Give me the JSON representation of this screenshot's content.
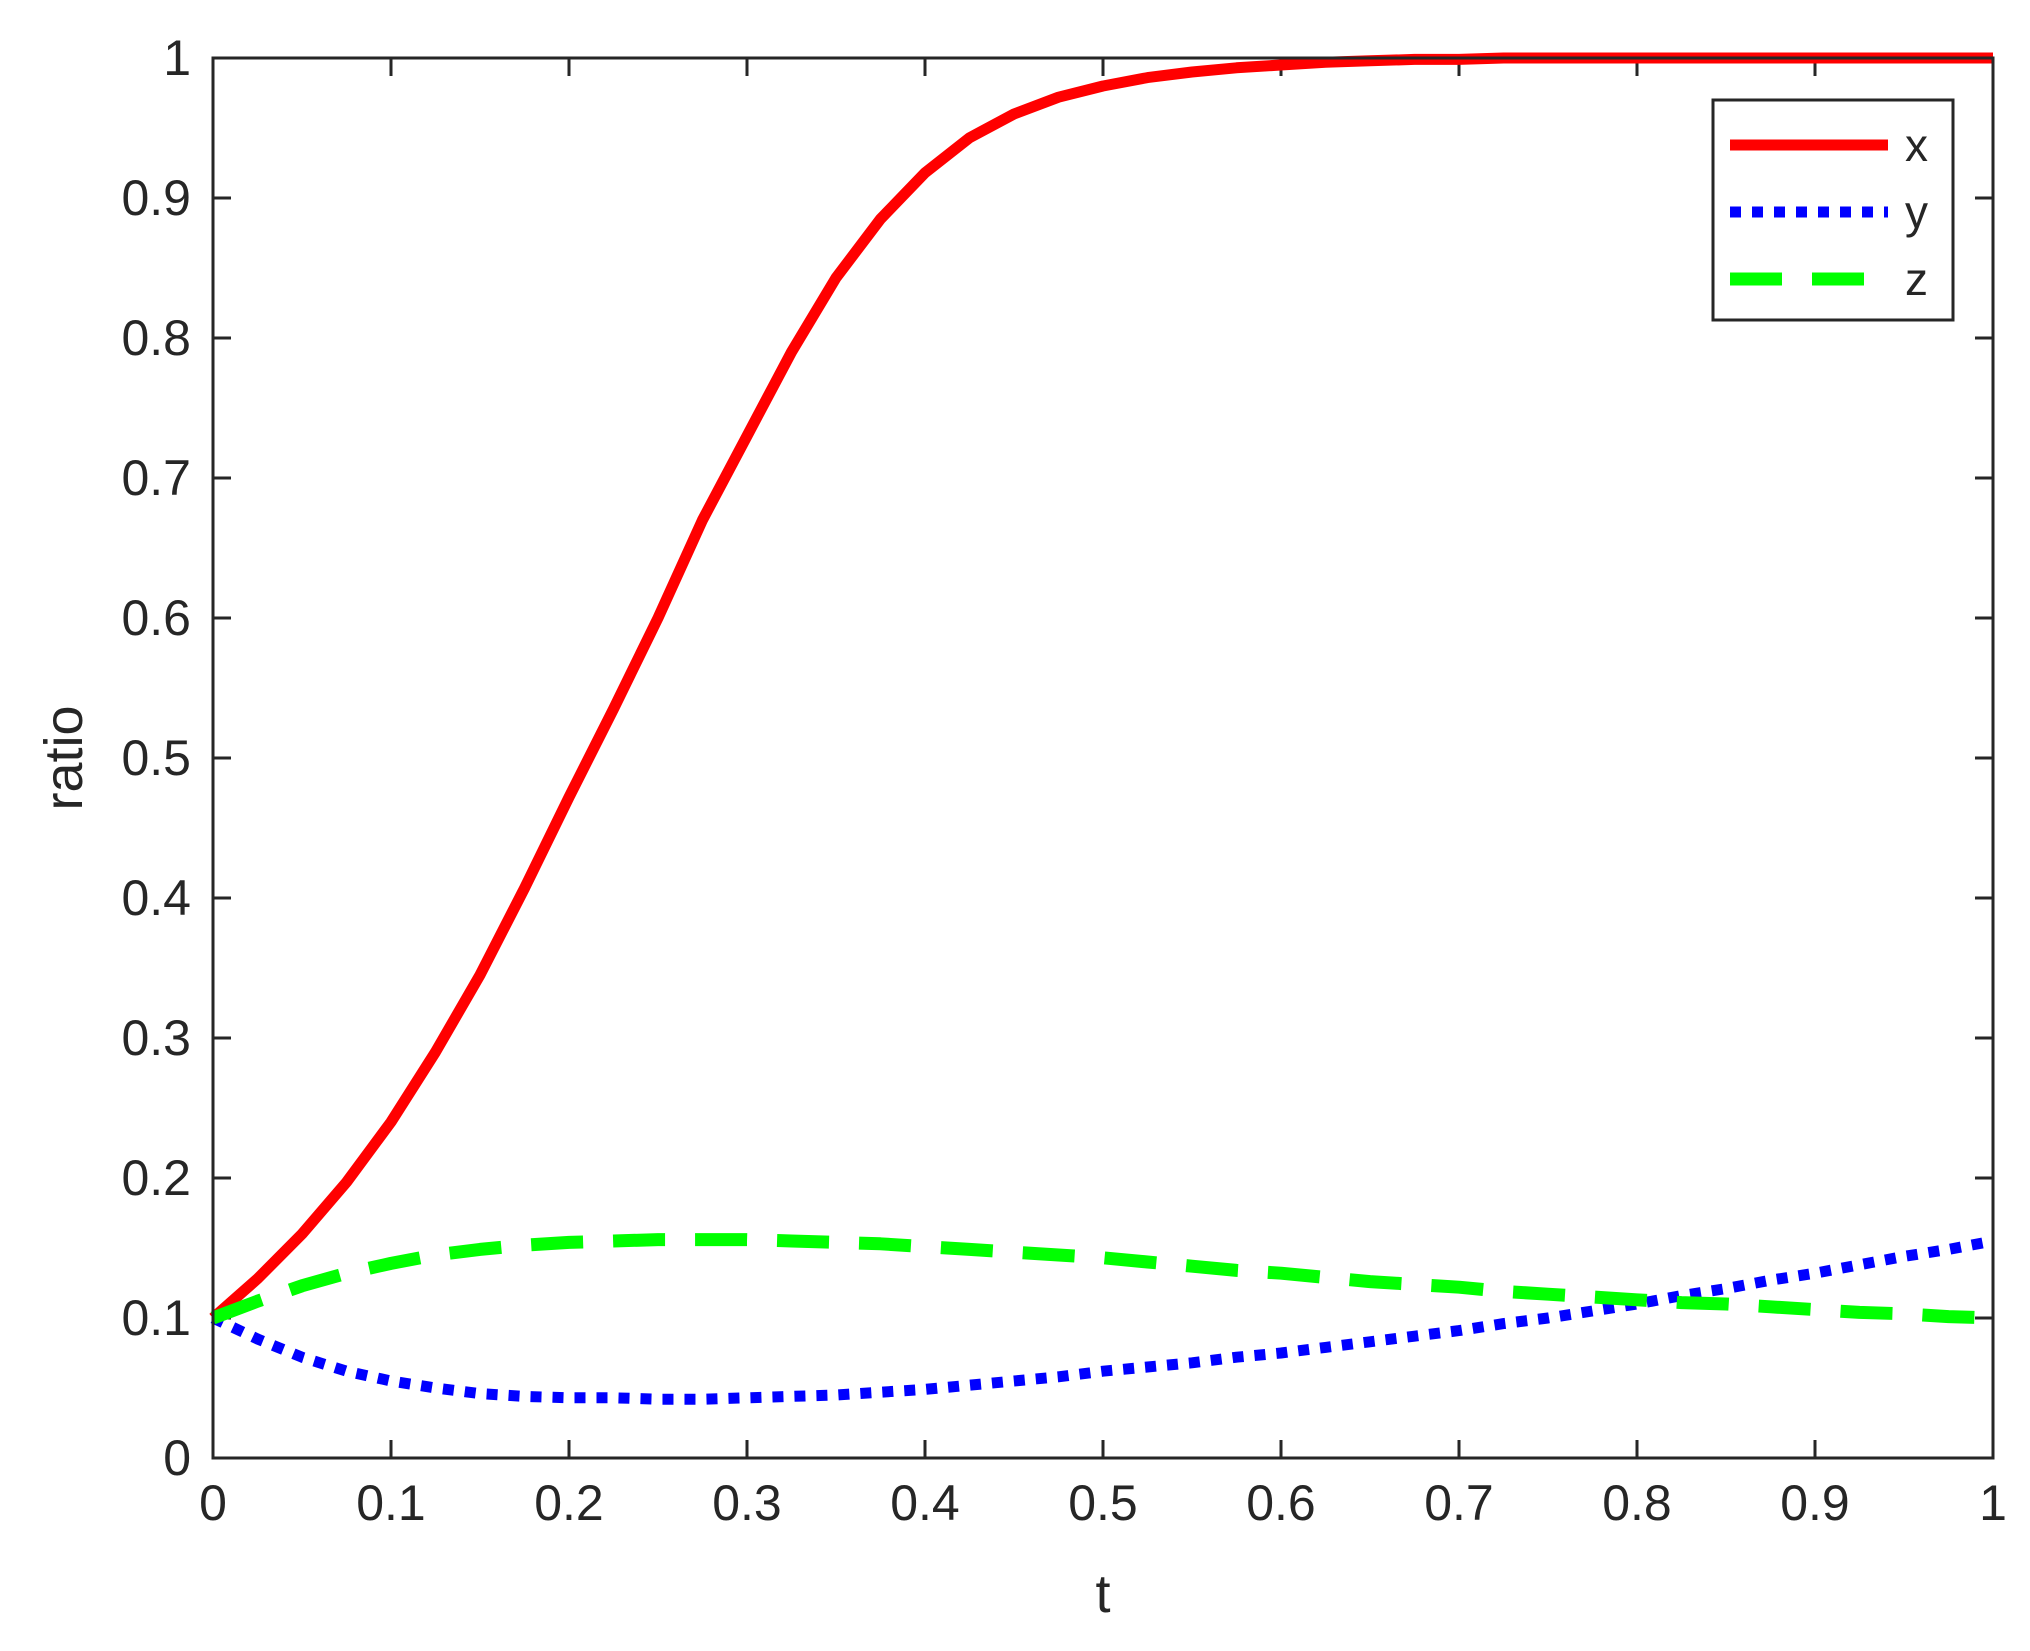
{
  "chart_data": {
    "type": "line",
    "title": "",
    "xlabel": "t",
    "ylabel": "ratio",
    "xlim": [
      0,
      1
    ],
    "ylim": [
      0,
      1
    ],
    "xticks": [
      0,
      0.1,
      0.2,
      0.3,
      0.4,
      0.5,
      0.6,
      0.7,
      0.8,
      0.9,
      1
    ],
    "yticks": [
      0,
      0.1,
      0.2,
      0.3,
      0.4,
      0.5,
      0.6,
      0.7,
      0.8,
      0.9,
      1
    ],
    "xtick_labels": [
      "0",
      "0.1",
      "0.2",
      "0.3",
      "0.4",
      "0.5",
      "0.6",
      "0.7",
      "0.8",
      "0.9",
      "1"
    ],
    "ytick_labels": [
      "0",
      "0.1",
      "0.2",
      "0.3",
      "0.4",
      "0.5",
      "0.6",
      "0.7",
      "0.8",
      "0.9",
      "1"
    ],
    "grid": false,
    "legend_position": "top-right",
    "x": [
      0,
      0.025,
      0.05,
      0.075,
      0.1,
      0.125,
      0.15,
      0.175,
      0.2,
      0.225,
      0.25,
      0.275,
      0.3,
      0.325,
      0.35,
      0.375,
      0.4,
      0.425,
      0.45,
      0.475,
      0.5,
      0.525,
      0.55,
      0.575,
      0.6,
      0.625,
      0.65,
      0.675,
      0.7,
      0.725,
      0.75,
      0.775,
      0.8,
      0.825,
      0.85,
      0.875,
      0.9,
      0.925,
      0.95,
      0.975,
      1
    ],
    "series": [
      {
        "name": "x",
        "color": "#ff0000",
        "style": "solid",
        "values": [
          0.1,
          0.128,
          0.16,
          0.197,
          0.24,
          0.29,
          0.345,
          0.407,
          0.472,
          0.535,
          0.6,
          0.67,
          0.73,
          0.79,
          0.843,
          0.885,
          0.918,
          0.943,
          0.96,
          0.972,
          0.98,
          0.986,
          0.99,
          0.993,
          0.995,
          0.997,
          0.998,
          0.999,
          0.999,
          1.0,
          1.0,
          1.0,
          1.0,
          1.0,
          1.0,
          1.0,
          1.0,
          1.0,
          1.0,
          1.0,
          1.0
        ]
      },
      {
        "name": "y",
        "color": "#0000ff",
        "style": "dotted",
        "values": [
          0.1,
          0.085,
          0.072,
          0.062,
          0.055,
          0.05,
          0.046,
          0.044,
          0.043,
          0.043,
          0.042,
          0.042,
          0.043,
          0.044,
          0.045,
          0.047,
          0.049,
          0.052,
          0.055,
          0.058,
          0.062,
          0.065,
          0.068,
          0.072,
          0.075,
          0.079,
          0.083,
          0.087,
          0.091,
          0.096,
          0.1,
          0.105,
          0.11,
          0.116,
          0.121,
          0.127,
          0.132,
          0.138,
          0.144,
          0.149,
          0.155
        ]
      },
      {
        "name": "z",
        "color": "#00ff00",
        "style": "dashed",
        "values": [
          0.1,
          0.112,
          0.123,
          0.132,
          0.139,
          0.145,
          0.149,
          0.152,
          0.154,
          0.155,
          0.156,
          0.156,
          0.156,
          0.155,
          0.154,
          0.153,
          0.151,
          0.149,
          0.147,
          0.145,
          0.143,
          0.14,
          0.137,
          0.134,
          0.132,
          0.129,
          0.126,
          0.124,
          0.122,
          0.119,
          0.117,
          0.115,
          0.113,
          0.111,
          0.11,
          0.108,
          0.106,
          0.104,
          0.103,
          0.101,
          0.1
        ]
      }
    ]
  }
}
